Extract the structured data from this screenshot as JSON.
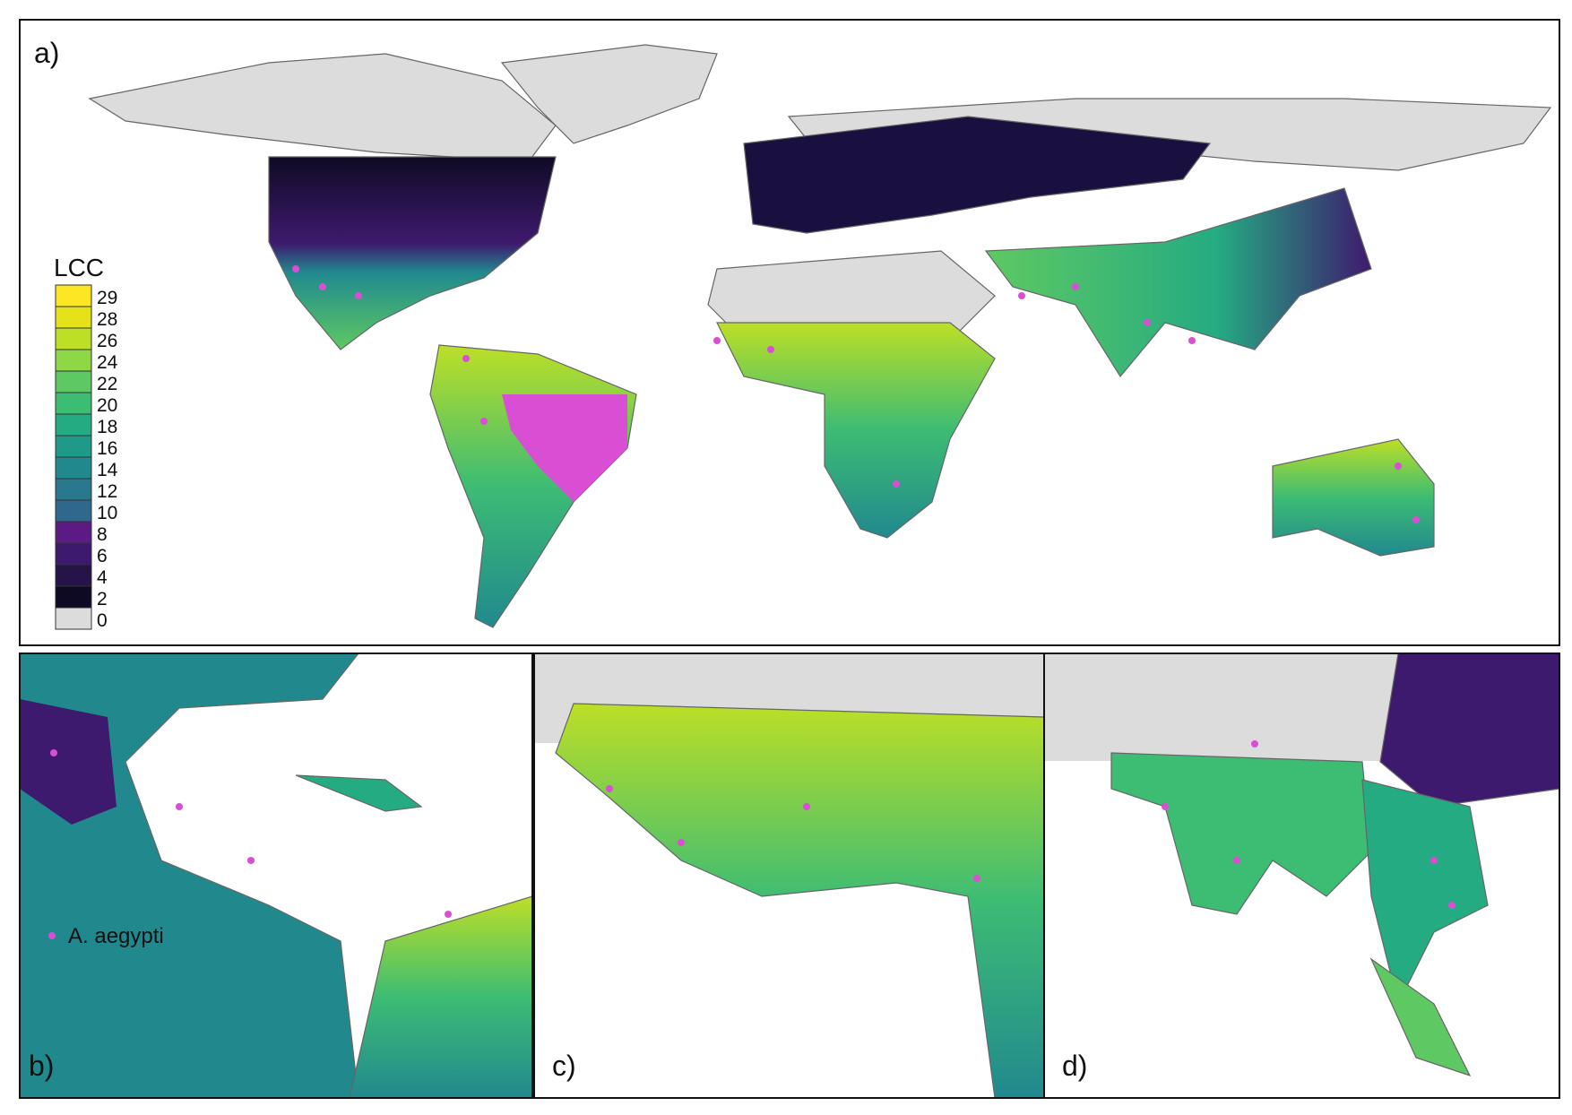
{
  "panels": [
    {
      "label": "a)"
    },
    {
      "label": "b)"
    },
    {
      "label": "c)"
    },
    {
      "label": "d)"
    }
  ],
  "legend": {
    "title": "LCC",
    "entries": [
      {
        "label": 29,
        "color": "#fde725"
      },
      {
        "label": 28,
        "color": "#e5e21a"
      },
      {
        "label": 26,
        "color": "#bddf26"
      },
      {
        "label": 24,
        "color": "#8fd744"
      },
      {
        "label": 22,
        "color": "#5ec962"
      },
      {
        "label": 20,
        "color": "#3dbc74"
      },
      {
        "label": 18,
        "color": "#25ab82"
      },
      {
        "label": 16,
        "color": "#1f9a8a"
      },
      {
        "label": 14,
        "color": "#21898e"
      },
      {
        "label": 12,
        "color": "#28788e"
      },
      {
        "label": 10,
        "color": "#30678d"
      },
      {
        "label": 8,
        "color": "#5c1a85"
      },
      {
        "label": 6,
        "color": "#3e1a6e"
      },
      {
        "label": 4,
        "color": "#261448"
      },
      {
        "label": 2,
        "color": "#0f0a24"
      },
      {
        "label": 0,
        "color": "#dcdcdc"
      }
    ]
  },
  "points_legend": {
    "label": "A. aegypti",
    "color": "#d94fd3"
  }
}
